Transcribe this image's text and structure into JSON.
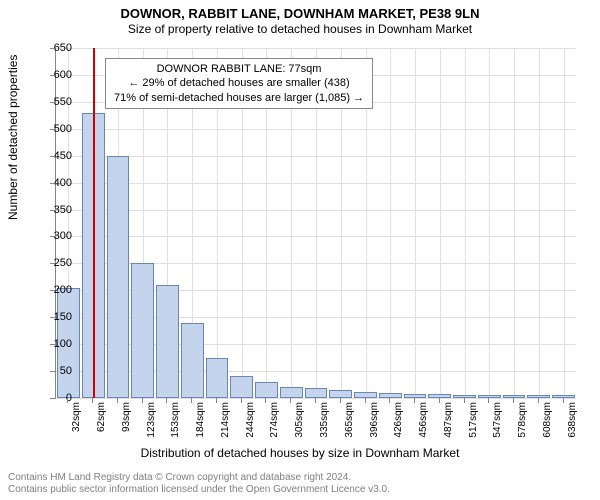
{
  "title": "DOWNOR, RABBIT LANE, DOWNHAM MARKET, PE38 9LN",
  "subtitle": "Size of property relative to detached houses in Downham Market",
  "y_axis": {
    "label": "Number of detached properties",
    "min": 0,
    "max": 650,
    "step": 50,
    "ticks": [
      0,
      50,
      100,
      150,
      200,
      250,
      300,
      350,
      400,
      450,
      500,
      550,
      600,
      650
    ]
  },
  "x_axis": {
    "label": "Distribution of detached houses by size in Downham Market",
    "ticks": [
      "32sqm",
      "62sqm",
      "93sqm",
      "123sqm",
      "153sqm",
      "184sqm",
      "214sqm",
      "244sqm",
      "274sqm",
      "305sqm",
      "335sqm",
      "365sqm",
      "396sqm",
      "426sqm",
      "456sqm",
      "487sqm",
      "517sqm",
      "547sqm",
      "578sqm",
      "608sqm",
      "638sqm"
    ]
  },
  "chart": {
    "type": "histogram",
    "bar_color": "#c5d4ed",
    "bar_border_color": "#6b86b5",
    "background_color": "#ffffff",
    "grid_color": "#e0e0e0",
    "values": [
      205,
      530,
      450,
      250,
      210,
      140,
      75,
      40,
      30,
      20,
      18,
      15,
      12,
      10,
      8,
      8,
      5,
      5,
      5,
      5,
      5
    ],
    "reference_line": {
      "position": 1.5,
      "color": "#d00000",
      "width": 2
    }
  },
  "annotation": {
    "line1": "DOWNOR RABBIT LANE: 77sqm",
    "line2": "← 29% of detached houses are smaller (438)",
    "line3": "71% of semi-detached houses are larger (1,085) →"
  },
  "footer": {
    "line1": "Contains HM Land Registry data © Crown copyright and database right 2024.",
    "line2": "Contains public sector information licensed under the Open Government Licence v3.0."
  }
}
